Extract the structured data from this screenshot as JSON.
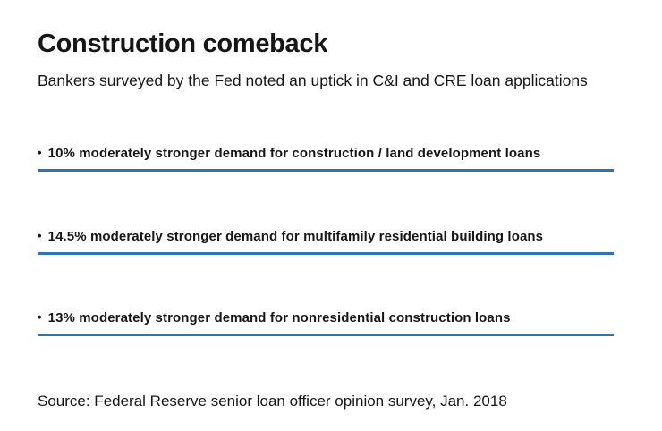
{
  "header": {
    "title": "Construction comeback",
    "subtitle": "Bankers surveyed by the Fed noted an uptick in C&I and CRE loan applications"
  },
  "bullets": [
    {
      "marker": "•",
      "text": "10% moderately stronger demand for construction / land development loans"
    },
    {
      "marker": "•",
      "text": "14.5% moderately stronger demand for multifamily residential building loans"
    },
    {
      "marker": "•",
      "text": "13% moderately stronger demand for nonresidential construction loans"
    }
  ],
  "footer": {
    "source": "Source: Federal Reserve senior loan officer opinion survey, Jan. 2018"
  },
  "colors": {
    "accent_rule": "#2e74b5",
    "text": "#161616",
    "background": "#ffffff"
  },
  "chart_data": {
    "type": "table",
    "title": "Construction comeback",
    "subtitle": "Bankers surveyed by the Fed noted an uptick in C&I and CRE loan applications",
    "categories": [
      "construction / land development loans",
      "multifamily residential building loans",
      "nonresidential construction loans"
    ],
    "values": [
      10,
      14.5,
      13
    ],
    "value_unit": "percent of bankers reporting moderately stronger demand",
    "legend_position": "none",
    "grid": false,
    "source": "Source: Federal Reserve senior loan officer opinion survey, Jan. 2018"
  }
}
